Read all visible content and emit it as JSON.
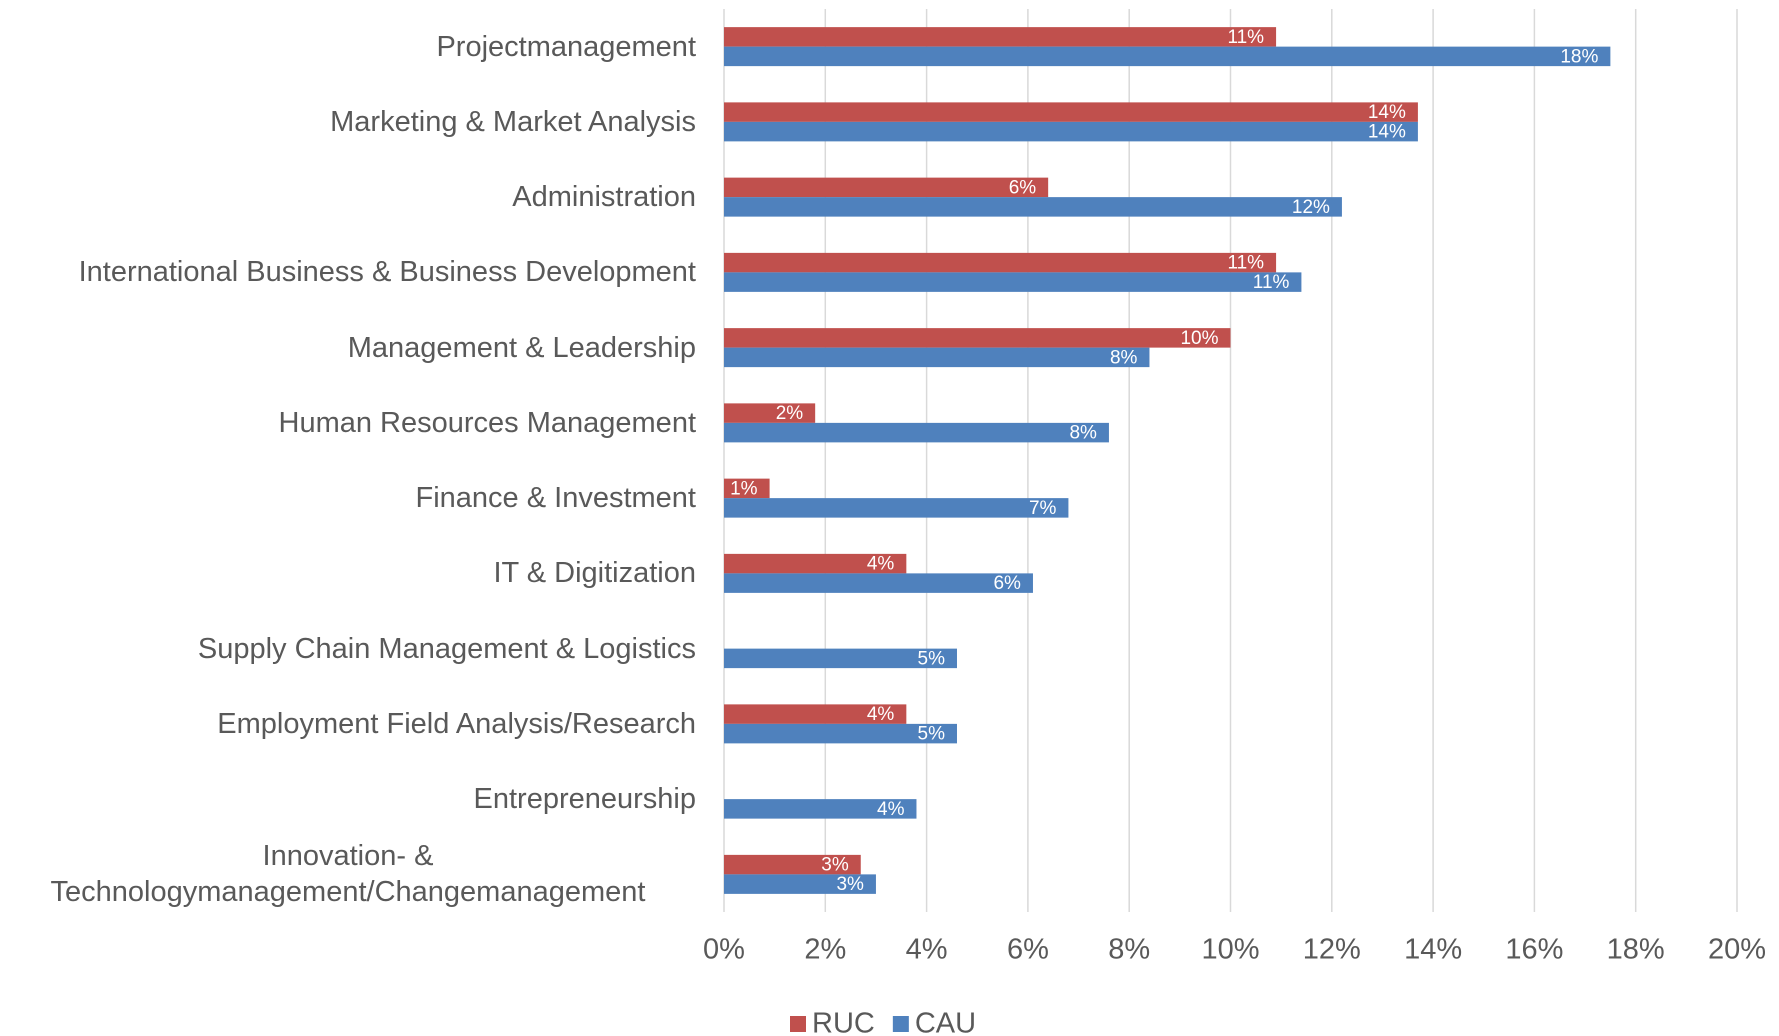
{
  "chart_data": {
    "type": "bar",
    "orientation": "horizontal",
    "categories": [
      "Projectmanagement",
      "Marketing & Market Analysis",
      "Administration",
      "International Business & Business Development",
      "Management & Leadership",
      "Human Resources Management",
      "Finance & Investment",
      "IT & Digitization",
      "Supply Chain Management & Logistics",
      "Employment Field Analysis/Research",
      "Entrepreneurship",
      "Innovation- & Technologymanagement/Changemanagement"
    ],
    "series": [
      {
        "name": "RUC",
        "color": "#c0504d",
        "values": [
          10.9,
          13.7,
          6.4,
          10.9,
          10.0,
          1.8,
          0.9,
          3.6,
          null,
          3.6,
          null,
          2.7
        ],
        "value_labels": [
          "11%",
          "14%",
          "6%",
          "11%",
          "10%",
          "2%",
          "1%",
          "4%",
          null,
          "4%",
          null,
          "3%"
        ]
      },
      {
        "name": "CAU",
        "color": "#4f81bd",
        "values": [
          17.5,
          13.7,
          12.2,
          11.4,
          8.4,
          7.6,
          6.8,
          6.1,
          4.6,
          4.6,
          3.8,
          3.0
        ],
        "value_labels": [
          "18%",
          "14%",
          "12%",
          "11%",
          "8%",
          "8%",
          "7%",
          "6%",
          "5%",
          "5%",
          "4%",
          "3%"
        ]
      }
    ],
    "xlim": [
      0,
      20
    ],
    "xticks": [
      {
        "value": 0,
        "label": "0%"
      },
      {
        "value": 2,
        "label": "2%"
      },
      {
        "value": 4,
        "label": "4%"
      },
      {
        "value": 6,
        "label": "6%"
      },
      {
        "value": 8,
        "label": "8%"
      },
      {
        "value": 10,
        "label": "10%"
      },
      {
        "value": 12,
        "label": "12%"
      },
      {
        "value": 14,
        "label": "14%"
      },
      {
        "value": 16,
        "label": "16%"
      },
      {
        "value": 18,
        "label": "18%"
      },
      {
        "value": 20,
        "label": "20%"
      }
    ],
    "grid": true,
    "legend": "bottom"
  }
}
